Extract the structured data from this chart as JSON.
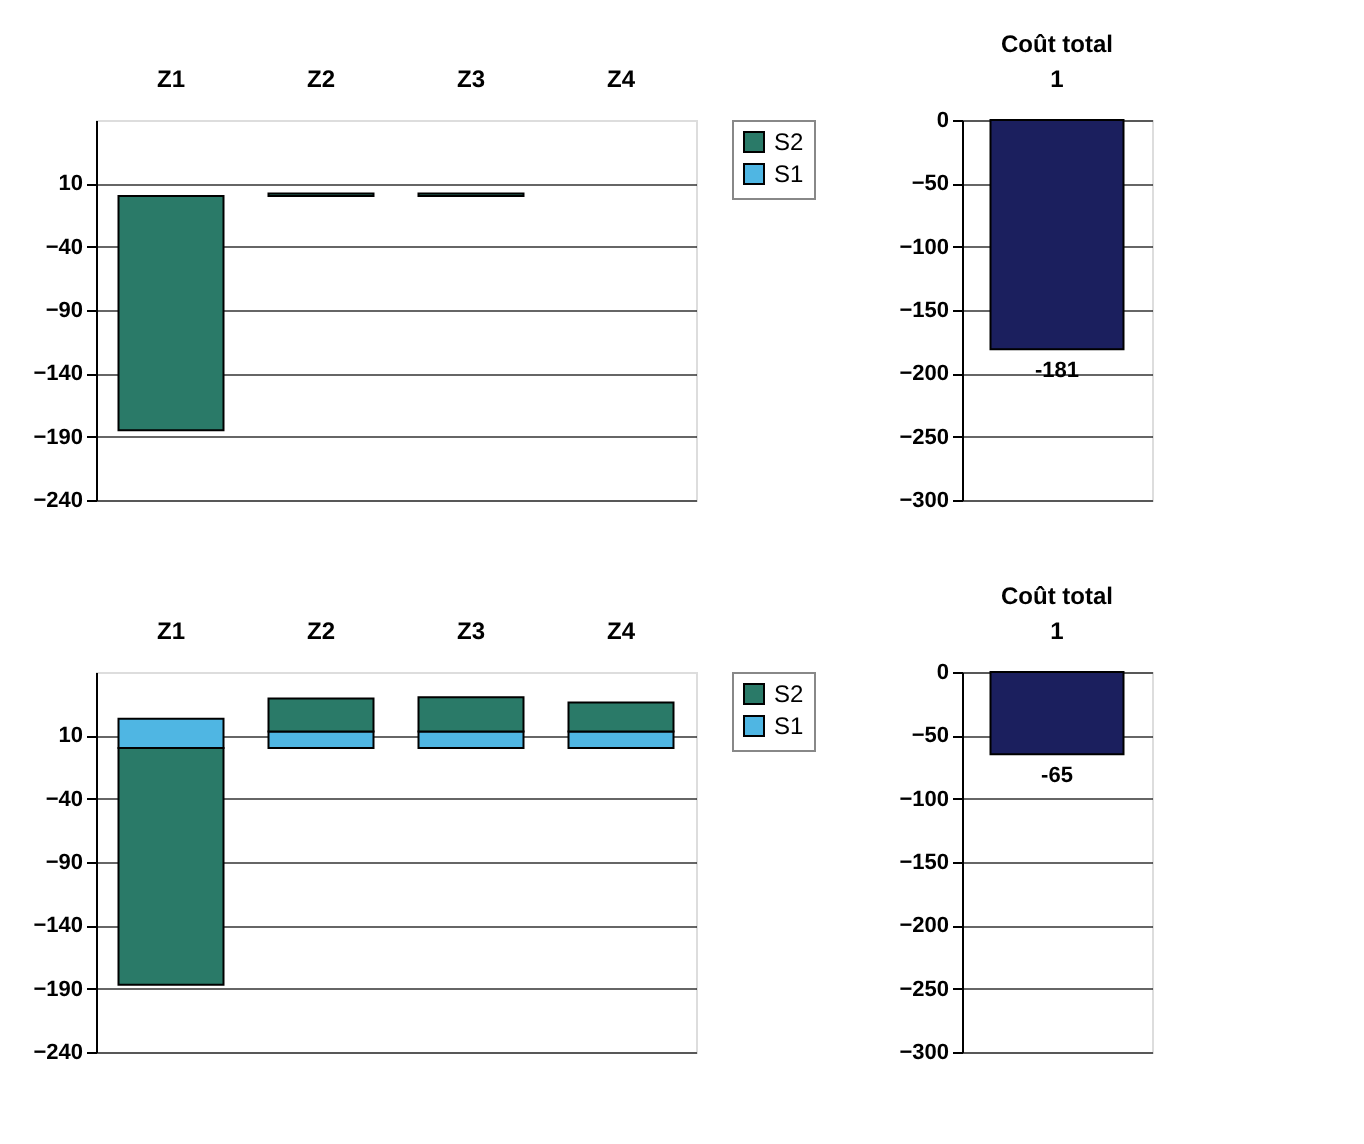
{
  "chart_data": [
    {
      "type": "bar",
      "stacked": true,
      "categories": [
        "Z1",
        "Z2",
        "Z3",
        "Z4"
      ],
      "series": [
        {
          "name": "S1",
          "color": "#4fb6e3",
          "values": [
            null,
            null,
            null,
            null
          ]
        },
        {
          "name": "S2",
          "color": "#2a7a68",
          "values": [
            -185,
            2,
            2,
            null
          ]
        }
      ],
      "ylim": [
        -240,
        60
      ],
      "yticks": [
        10,
        -40,
        -90,
        -140,
        -190,
        -240
      ],
      "grid": "y",
      "legend": "right"
    },
    {
      "type": "bar",
      "title": "Coût total",
      "categories": [
        "1"
      ],
      "values": [
        -181
      ],
      "color": "#1b1f5e",
      "data_labels": true,
      "ylim": [
        -300,
        0
      ],
      "yticks": [
        0,
        -50,
        -100,
        -150,
        -200,
        -250,
        -300
      ],
      "grid": "y"
    },
    {
      "type": "bar",
      "stacked": true,
      "categories": [
        "Z1",
        "Z2",
        "Z3",
        "Z4"
      ],
      "series": [
        {
          "name": "S1",
          "color": "#4fb6e3",
          "values": [
            23,
            13,
            13,
            13
          ]
        },
        {
          "name": "S2",
          "color": "#2a7a68",
          "values": [
            -187,
            26,
            27,
            23
          ]
        }
      ],
      "ylim": [
        -240,
        60
      ],
      "yticks": [
        10,
        -40,
        -90,
        -140,
        -190,
        -240
      ],
      "grid": "y",
      "legend": "right"
    },
    {
      "type": "bar",
      "title": "Coût total",
      "categories": [
        "1"
      ],
      "values": [
        -65
      ],
      "color": "#1b1f5e",
      "data_labels": true,
      "ylim": [
        -300,
        0
      ],
      "yticks": [
        0,
        -50,
        -100,
        -150,
        -200,
        -250,
        -300
      ],
      "grid": "y"
    }
  ]
}
